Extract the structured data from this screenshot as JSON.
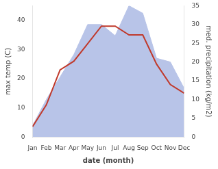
{
  "chart_data": {
    "type": "line",
    "categories": [
      "Jan",
      "Feb",
      "Mar",
      "Apr",
      "May",
      "Jun",
      "Jul",
      "Aug",
      "Sep",
      "Oct",
      "Nov",
      "Dec"
    ],
    "series": [
      {
        "type": "area",
        "color": "#b8c4e8",
        "axis": "y2",
        "values": [
          3,
          10,
          16,
          22,
          30,
          30,
          27,
          35,
          33,
          21,
          20,
          13
        ]
      },
      {
        "type": "line",
        "color": "#c0392b",
        "values": [
          3.5,
          11,
          23,
          26,
          32,
          38,
          38,
          35,
          35,
          25,
          18,
          15
        ]
      }
    ],
    "xlabel": "date (month)",
    "ylabel": "max temp (C)",
    "y2label": "med. precipitation (kg/m2)",
    "ylim": [
      0,
      45
    ],
    "yticks": [
      0,
      10,
      20,
      30,
      40
    ],
    "y2lim": [
      0,
      35
    ],
    "y2ticks": [
      0,
      5,
      10,
      15,
      20,
      25,
      30,
      35
    ],
    "grid": false
  }
}
